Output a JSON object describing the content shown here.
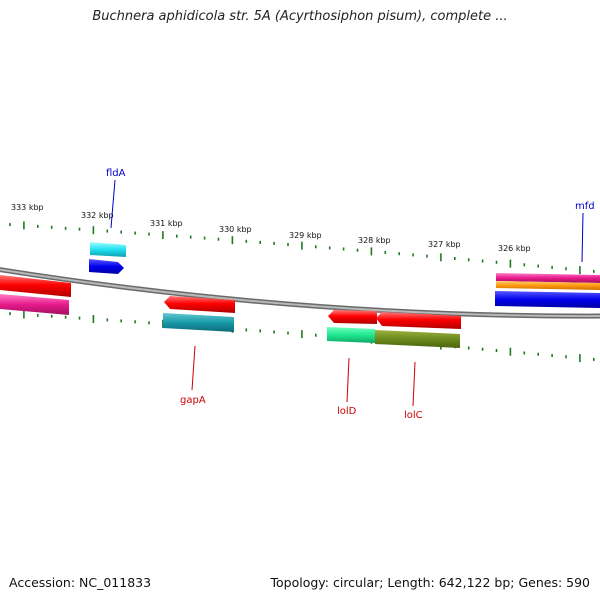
{
  "title": "Buchnera aphidicola str. 5A (Acyrthosiphon pisum), complete ...",
  "footer": {
    "accession": "Accession: NC_011833",
    "summary": "Topology: circular; Length: 642,122 bp; Genes: 590"
  },
  "colors": {
    "backbone": "#8c8c8c",
    "tick": "#1f7a1f",
    "label_blue": "#0000cc",
    "label_red": "#cc0000"
  },
  "scale": {
    "labels": [
      "333 kbp",
      "332 kbp",
      "331 kbp",
      "330 kbp",
      "329 kbp",
      "328 kbp",
      "327 kbp",
      "326 kbp"
    ]
  },
  "genes": {
    "fldA": "fldA",
    "mfd": "mfd",
    "gapA": "gapA",
    "lolD": "lolD",
    "lolC": "lolC"
  }
}
